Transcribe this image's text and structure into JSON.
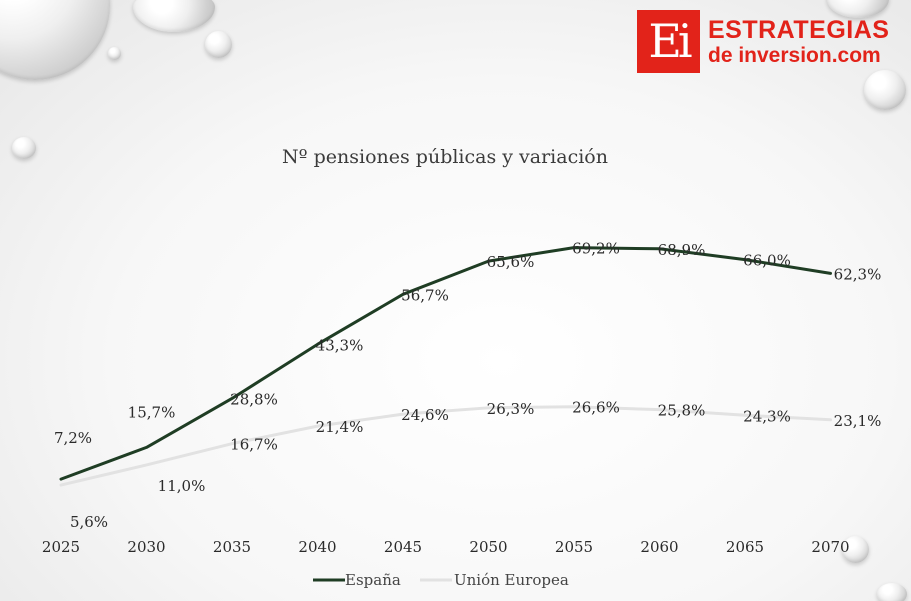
{
  "logo": {
    "mark": "Ei",
    "line1": "ESTRATEGIAS",
    "line2": "de inversion.com"
  },
  "chart_data": {
    "type": "line",
    "title": "Nº pensiones públicas y variación",
    "categories": [
      "2025",
      "2030",
      "2035",
      "2040",
      "2045",
      "2050",
      "2055",
      "2060",
      "2065",
      "2070"
    ],
    "series": [
      {
        "name": "España",
        "color": "#1f3d24",
        "values": [
          7.2,
          15.7,
          28.8,
          43.3,
          56.7,
          65.6,
          69.2,
          68.9,
          66.0,
          62.3
        ],
        "labels": [
          "7,2%",
          "15,7%",
          "28,8%",
          "43,3%",
          "56,7%",
          "65,6%",
          "69,2%",
          "68,9%",
          "66,0%",
          "62,3%"
        ]
      },
      {
        "name": "Unión Europea",
        "color": "#e2e2e2",
        "values": [
          5.6,
          11.0,
          16.7,
          21.4,
          24.6,
          26.3,
          26.6,
          25.8,
          24.3,
          23.1
        ],
        "labels": [
          "5,6%",
          "11,0%",
          "16,7%",
          "21,4%",
          "24,6%",
          "26,3%",
          "26,6%",
          "25,8%",
          "24,3%",
          "23,1%"
        ]
      }
    ],
    "legend_position": "bottom",
    "grid": false,
    "ylim": [
      0,
      75
    ]
  }
}
